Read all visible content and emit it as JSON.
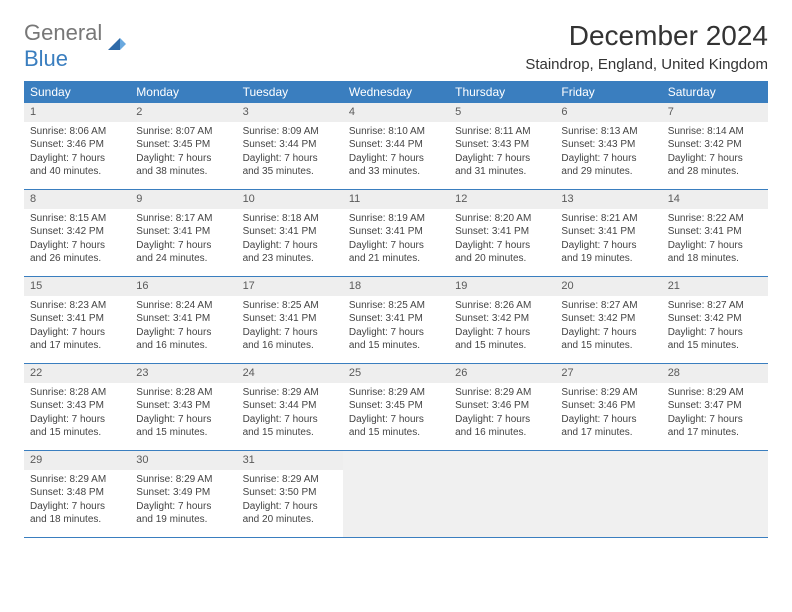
{
  "brand": {
    "line1": "General",
    "line2": "Blue"
  },
  "title": "December 2024",
  "location": "Staindrop, England, United Kingdom",
  "colors": {
    "header_bg": "#3a7ebf",
    "header_text": "#ffffff",
    "daynum_bg": "#eeeeee",
    "border": "#3a7ebf",
    "empty_bg": "#f0f0f0"
  },
  "typography": {
    "title_size": 28,
    "location_size": 15,
    "header_size": 12,
    "daynum_size": 11,
    "body_size": 10
  },
  "day_headers": [
    "Sunday",
    "Monday",
    "Tuesday",
    "Wednesday",
    "Thursday",
    "Friday",
    "Saturday"
  ],
  "weeks": [
    [
      {
        "n": "1",
        "sr": "Sunrise: 8:06 AM",
        "ss": "Sunset: 3:46 PM",
        "d1": "Daylight: 7 hours",
        "d2": "and 40 minutes."
      },
      {
        "n": "2",
        "sr": "Sunrise: 8:07 AM",
        "ss": "Sunset: 3:45 PM",
        "d1": "Daylight: 7 hours",
        "d2": "and 38 minutes."
      },
      {
        "n": "3",
        "sr": "Sunrise: 8:09 AM",
        "ss": "Sunset: 3:44 PM",
        "d1": "Daylight: 7 hours",
        "d2": "and 35 minutes."
      },
      {
        "n": "4",
        "sr": "Sunrise: 8:10 AM",
        "ss": "Sunset: 3:44 PM",
        "d1": "Daylight: 7 hours",
        "d2": "and 33 minutes."
      },
      {
        "n": "5",
        "sr": "Sunrise: 8:11 AM",
        "ss": "Sunset: 3:43 PM",
        "d1": "Daylight: 7 hours",
        "d2": "and 31 minutes."
      },
      {
        "n": "6",
        "sr": "Sunrise: 8:13 AM",
        "ss": "Sunset: 3:43 PM",
        "d1": "Daylight: 7 hours",
        "d2": "and 29 minutes."
      },
      {
        "n": "7",
        "sr": "Sunrise: 8:14 AM",
        "ss": "Sunset: 3:42 PM",
        "d1": "Daylight: 7 hours",
        "d2": "and 28 minutes."
      }
    ],
    [
      {
        "n": "8",
        "sr": "Sunrise: 8:15 AM",
        "ss": "Sunset: 3:42 PM",
        "d1": "Daylight: 7 hours",
        "d2": "and 26 minutes."
      },
      {
        "n": "9",
        "sr": "Sunrise: 8:17 AM",
        "ss": "Sunset: 3:41 PM",
        "d1": "Daylight: 7 hours",
        "d2": "and 24 minutes."
      },
      {
        "n": "10",
        "sr": "Sunrise: 8:18 AM",
        "ss": "Sunset: 3:41 PM",
        "d1": "Daylight: 7 hours",
        "d2": "and 23 minutes."
      },
      {
        "n": "11",
        "sr": "Sunrise: 8:19 AM",
        "ss": "Sunset: 3:41 PM",
        "d1": "Daylight: 7 hours",
        "d2": "and 21 minutes."
      },
      {
        "n": "12",
        "sr": "Sunrise: 8:20 AM",
        "ss": "Sunset: 3:41 PM",
        "d1": "Daylight: 7 hours",
        "d2": "and 20 minutes."
      },
      {
        "n": "13",
        "sr": "Sunrise: 8:21 AM",
        "ss": "Sunset: 3:41 PM",
        "d1": "Daylight: 7 hours",
        "d2": "and 19 minutes."
      },
      {
        "n": "14",
        "sr": "Sunrise: 8:22 AM",
        "ss": "Sunset: 3:41 PM",
        "d1": "Daylight: 7 hours",
        "d2": "and 18 minutes."
      }
    ],
    [
      {
        "n": "15",
        "sr": "Sunrise: 8:23 AM",
        "ss": "Sunset: 3:41 PM",
        "d1": "Daylight: 7 hours",
        "d2": "and 17 minutes."
      },
      {
        "n": "16",
        "sr": "Sunrise: 8:24 AM",
        "ss": "Sunset: 3:41 PM",
        "d1": "Daylight: 7 hours",
        "d2": "and 16 minutes."
      },
      {
        "n": "17",
        "sr": "Sunrise: 8:25 AM",
        "ss": "Sunset: 3:41 PM",
        "d1": "Daylight: 7 hours",
        "d2": "and 16 minutes."
      },
      {
        "n": "18",
        "sr": "Sunrise: 8:25 AM",
        "ss": "Sunset: 3:41 PM",
        "d1": "Daylight: 7 hours",
        "d2": "and 15 minutes."
      },
      {
        "n": "19",
        "sr": "Sunrise: 8:26 AM",
        "ss": "Sunset: 3:42 PM",
        "d1": "Daylight: 7 hours",
        "d2": "and 15 minutes."
      },
      {
        "n": "20",
        "sr": "Sunrise: 8:27 AM",
        "ss": "Sunset: 3:42 PM",
        "d1": "Daylight: 7 hours",
        "d2": "and 15 minutes."
      },
      {
        "n": "21",
        "sr": "Sunrise: 8:27 AM",
        "ss": "Sunset: 3:42 PM",
        "d1": "Daylight: 7 hours",
        "d2": "and 15 minutes."
      }
    ],
    [
      {
        "n": "22",
        "sr": "Sunrise: 8:28 AM",
        "ss": "Sunset: 3:43 PM",
        "d1": "Daylight: 7 hours",
        "d2": "and 15 minutes."
      },
      {
        "n": "23",
        "sr": "Sunrise: 8:28 AM",
        "ss": "Sunset: 3:43 PM",
        "d1": "Daylight: 7 hours",
        "d2": "and 15 minutes."
      },
      {
        "n": "24",
        "sr": "Sunrise: 8:29 AM",
        "ss": "Sunset: 3:44 PM",
        "d1": "Daylight: 7 hours",
        "d2": "and 15 minutes."
      },
      {
        "n": "25",
        "sr": "Sunrise: 8:29 AM",
        "ss": "Sunset: 3:45 PM",
        "d1": "Daylight: 7 hours",
        "d2": "and 15 minutes."
      },
      {
        "n": "26",
        "sr": "Sunrise: 8:29 AM",
        "ss": "Sunset: 3:46 PM",
        "d1": "Daylight: 7 hours",
        "d2": "and 16 minutes."
      },
      {
        "n": "27",
        "sr": "Sunrise: 8:29 AM",
        "ss": "Sunset: 3:46 PM",
        "d1": "Daylight: 7 hours",
        "d2": "and 17 minutes."
      },
      {
        "n": "28",
        "sr": "Sunrise: 8:29 AM",
        "ss": "Sunset: 3:47 PM",
        "d1": "Daylight: 7 hours",
        "d2": "and 17 minutes."
      }
    ],
    [
      {
        "n": "29",
        "sr": "Sunrise: 8:29 AM",
        "ss": "Sunset: 3:48 PM",
        "d1": "Daylight: 7 hours",
        "d2": "and 18 minutes."
      },
      {
        "n": "30",
        "sr": "Sunrise: 8:29 AM",
        "ss": "Sunset: 3:49 PM",
        "d1": "Daylight: 7 hours",
        "d2": "and 19 minutes."
      },
      {
        "n": "31",
        "sr": "Sunrise: 8:29 AM",
        "ss": "Sunset: 3:50 PM",
        "d1": "Daylight: 7 hours",
        "d2": "and 20 minutes."
      },
      null,
      null,
      null,
      null
    ]
  ]
}
